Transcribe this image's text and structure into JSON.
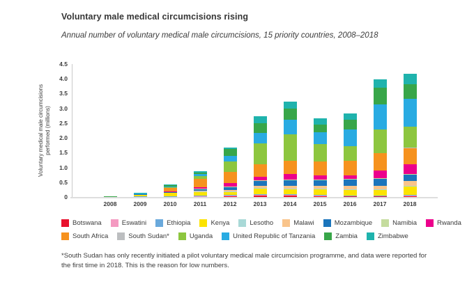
{
  "page": {
    "title": "Voluntary male medical circumcisions rising",
    "subtitle": "Annual number of voluntary medical male circumcisions, 15 priority countries, 2008–2018",
    "footnote": "*South Sudan has only recently initiated a pilot voluntary medical male circumcision programme, and data were reported for the first time in 2018. This is the reason for low numbers."
  },
  "chart_data": {
    "type": "bar",
    "stacked": true,
    "title": "Voluntary male medical circumcisions rising",
    "subtitle": "Annual number of voluntary medical male circumcisions, 15 priority countries, 2008–2018",
    "ylabel_line1": "Voluntary medical male circumcisions",
    "ylabel_line2": "performed (millions)",
    "xlabel": "",
    "ylim": [
      0,
      4.5
    ],
    "ytick_step": 0.5,
    "yticks": [
      "0",
      "0.5",
      "1.0",
      "1.5",
      "2.0",
      "2.5",
      "3.0",
      "3.5",
      "4.0",
      "4.5"
    ],
    "grid": false,
    "legend_position": "bottom",
    "categories": [
      "2008",
      "2009",
      "2010",
      "2011",
      "2012",
      "2013",
      "2014",
      "2015",
      "2016",
      "2017",
      "2018"
    ],
    "series": [
      {
        "name": "Botswana",
        "legend_label": "Botswana",
        "color": "#e8112d",
        "values": [
          0.005,
          0.005,
          0.01,
          0.02,
          0.04,
          0.06,
          0.05,
          0.04,
          0.03,
          0.03,
          0.04
        ]
      },
      {
        "name": "Eswatini",
        "legend_label": "Eswatini",
        "color": "#f49ac1",
        "values": [
          0.005,
          0.005,
          0.01,
          0.01,
          0.01,
          0.01,
          0.01,
          0.01,
          0.01,
          0.01,
          0.01
        ]
      },
      {
        "name": "Ethiopia",
        "legend_label": "Ethiopia",
        "color": "#6aa9dc",
        "values": [
          0,
          0.005,
          0.01,
          0.01,
          0.01,
          0.02,
          0.03,
          0.02,
          0.01,
          0.01,
          0.02
        ]
      },
      {
        "name": "Kenya",
        "legend_label": "Kenya",
        "color": "#fce300",
        "values": [
          0.01,
          0.08,
          0.12,
          0.14,
          0.13,
          0.21,
          0.18,
          0.19,
          0.2,
          0.2,
          0.28
        ]
      },
      {
        "name": "Lesotho",
        "legend_label": "Lesotho",
        "color": "#a9d9d7",
        "values": [
          0,
          0,
          0,
          0.01,
          0.01,
          0.01,
          0.02,
          0.02,
          0.02,
          0.02,
          0.02
        ]
      },
      {
        "name": "Malawi",
        "legend_label": "Malawi",
        "color": "#f9c48b",
        "values": [
          0,
          0,
          0.01,
          0.03,
          0.03,
          0.06,
          0.09,
          0.1,
          0.1,
          0.1,
          0.17
        ]
      },
      {
        "name": "Mozambique",
        "legend_label": "Mozambique",
        "color": "#1b75bc",
        "values": [
          0,
          0.005,
          0.01,
          0.05,
          0.11,
          0.17,
          0.2,
          0.19,
          0.22,
          0.25,
          0.22
        ]
      },
      {
        "name": "Namibia",
        "legend_label": "Namibia",
        "color": "#c5dc9e",
        "values": [
          0,
          0,
          0,
          0.01,
          0.01,
          0.02,
          0.02,
          0.02,
          0.02,
          0.02,
          0.02
        ]
      },
      {
        "name": "Rwanda",
        "legend_label": "Rwanda",
        "color": "#ec008c",
        "values": [
          0,
          0,
          0.02,
          0.04,
          0.13,
          0.13,
          0.17,
          0.15,
          0.13,
          0.25,
          0.33
        ]
      },
      {
        "name": "South Africa",
        "legend_label": "South Africa",
        "color": "#f6921e",
        "values": [
          0.005,
          0.01,
          0.13,
          0.3,
          0.37,
          0.42,
          0.45,
          0.46,
          0.49,
          0.6,
          0.55
        ]
      },
      {
        "name": "South Sudan",
        "legend_label": "South Sudan*",
        "color": "#bcbec0",
        "values": [
          0,
          0,
          0,
          0,
          0,
          0,
          0,
          0,
          0,
          0,
          0.01
        ]
      },
      {
        "name": "Uganda",
        "legend_label": "Uganda",
        "color": "#8dc63f",
        "values": [
          0,
          0.005,
          0.02,
          0.08,
          0.36,
          0.7,
          0.9,
          0.6,
          0.5,
          0.8,
          0.7
        ]
      },
      {
        "name": "United Republic of Tanzania",
        "legend_label": "United Republic of Tanzania",
        "color": "#29abe2",
        "values": [
          0,
          0.01,
          0.02,
          0.07,
          0.17,
          0.36,
          0.5,
          0.4,
          0.55,
          0.85,
          0.95
        ]
      },
      {
        "name": "Zambia",
        "legend_label": "Zambia",
        "color": "#38a649",
        "values": [
          0.005,
          0.01,
          0.04,
          0.06,
          0.25,
          0.32,
          0.38,
          0.25,
          0.33,
          0.55,
          0.5
        ]
      },
      {
        "name": "Zimbabwe",
        "legend_label": "Zimbabwe",
        "color": "#1fb3ad",
        "values": [
          0,
          0.01,
          0.02,
          0.04,
          0.05,
          0.25,
          0.24,
          0.22,
          0.21,
          0.3,
          0.35
        ]
      }
    ],
    "legend_rows": [
      [
        0,
        1,
        2,
        3,
        4,
        5,
        6,
        7,
        8
      ],
      [
        9,
        10,
        11,
        12,
        13,
        14
      ]
    ]
  }
}
